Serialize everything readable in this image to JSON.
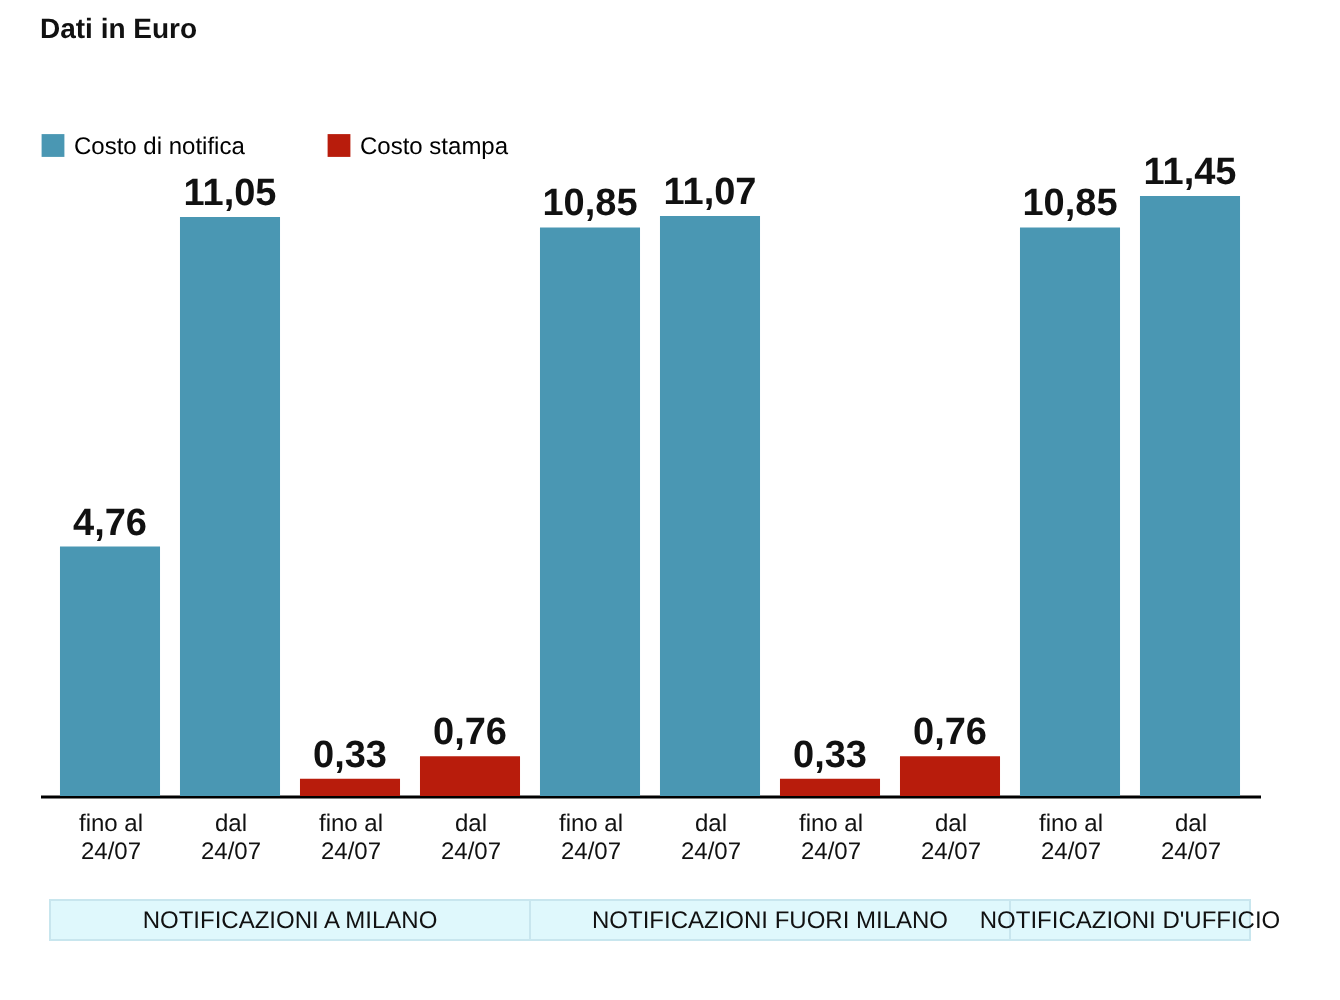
{
  "chart_data": {
    "type": "bar",
    "title": "Dati in Euro",
    "categories": [
      "fino al 24/07",
      "dal 24/07",
      "fino al 24/07",
      "dal 24/07",
      "fino al 24/07",
      "dal 24/07",
      "fino al 24/07",
      "dal 24/07",
      "fino al 24/07",
      "dal 24/07"
    ],
    "series": [
      {
        "name": "Costo di notifica",
        "color": "#4a97b3",
        "values": [
          4.76,
          11.05,
          null,
          null,
          10.85,
          11.07,
          null,
          null,
          10.85,
          11.45
        ],
        "value_labels": [
          "4,76",
          "11,05",
          null,
          null,
          "10,85",
          "11,07",
          null,
          null,
          "10,85",
          "11,45"
        ]
      },
      {
        "name": "Costo stampa",
        "color": "#b81c0c",
        "values": [
          null,
          null,
          0.33,
          0.76,
          null,
          null,
          0.33,
          0.76,
          null,
          null
        ],
        "value_labels": [
          null,
          null,
          "0,33",
          "0,76",
          null,
          null,
          "0,33",
          "0,76",
          null,
          null
        ]
      }
    ],
    "annotations": [
      "NOTIFICAZIONI A MILANO",
      "NOTIFICAZIONI FUORI MILANO",
      "NOTIFICAZIONI D'UFFICIO"
    ],
    "legend": "top left"
  }
}
